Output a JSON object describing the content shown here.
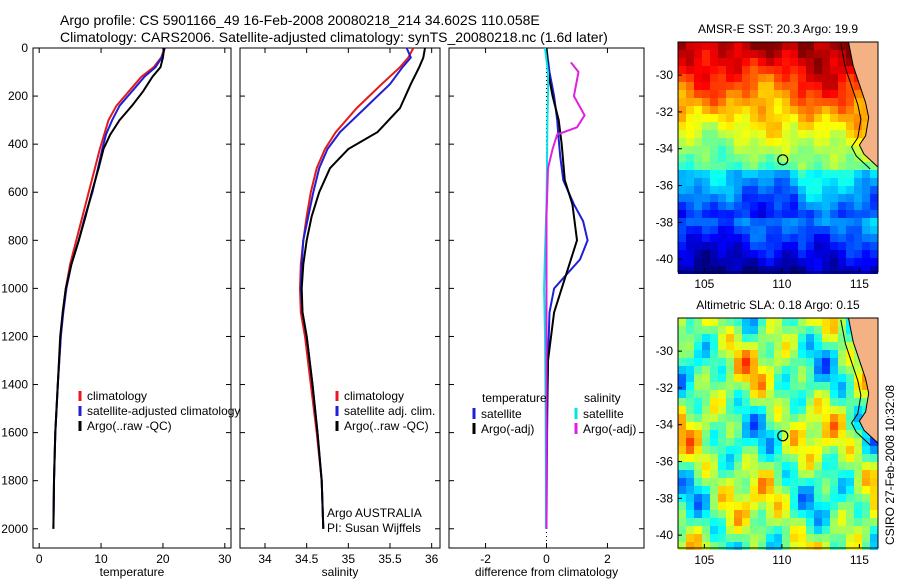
{
  "header": {
    "line1": "Argo profile: CS 5901166_49 16-Feb-2008 20080218_214 34.602S 110.058E",
    "line2": "Climatology: CARS2006. Satellite-adjusted climatology: synTS_20080218.nc (1.6d later)"
  },
  "side_text": "CSIRO 27-Feb-2008 10:32:08",
  "credit": [
    "Argo AUSTRALIA",
    "PI: Susan Wijffels"
  ],
  "colors": {
    "red": "#e41a1c",
    "blue": "#1f1fd6",
    "black": "#000000",
    "cyan": "#00e5e5",
    "magenta": "#e020e0",
    "land": "#f4b183"
  },
  "chart_data": [
    {
      "type": "line",
      "xlabel": "temperature",
      "xlim": [
        -1,
        31
      ],
      "xticks": [
        0,
        10,
        20,
        30
      ],
      "ylim": [
        2080,
        0
      ],
      "yticks": [
        0,
        200,
        400,
        600,
        800,
        1000,
        1200,
        1400,
        1600,
        1800,
        2000
      ],
      "legend": [
        "climatology",
        "satellite-adjusted climatology",
        "Argo(..raw -QC)"
      ],
      "series": [
        {
          "name": "climatology",
          "color": "red",
          "x": [
            20.3,
            19.7,
            18.5,
            16.5,
            14.5,
            12.5,
            11.2,
            10.5,
            9.8,
            9.0,
            8.0,
            7.0,
            6.0,
            5.0,
            4.3,
            3.8,
            3.5,
            3.0,
            2.6,
            2.4,
            2.3
          ],
          "y": [
            0,
            40,
            80,
            120,
            180,
            240,
            300,
            360,
            420,
            500,
            600,
            700,
            800,
            900,
            1000,
            1100,
            1200,
            1400,
            1600,
            1800,
            2000
          ]
        },
        {
          "name": "satellite-adjusted climatology",
          "color": "blue",
          "x": [
            20.3,
            19.8,
            18.8,
            17.0,
            15.0,
            13.0,
            11.8,
            10.8,
            10.2,
            9.5,
            8.6,
            7.4,
            6.4,
            5.2,
            4.4,
            3.9,
            3.5,
            3.0,
            2.6,
            2.4,
            2.3
          ],
          "y": [
            0,
            40,
            80,
            120,
            180,
            240,
            300,
            360,
            420,
            500,
            600,
            700,
            800,
            900,
            1000,
            1100,
            1200,
            1400,
            1600,
            1800,
            2000
          ]
        },
        {
          "name": "Argo(..raw -QC)",
          "color": "black",
          "x": [
            20.2,
            20.0,
            19.6,
            18.3,
            16.8,
            15.0,
            13.0,
            11.5,
            10.4,
            9.6,
            8.5,
            7.5,
            6.4,
            5.2,
            4.3,
            3.8,
            3.4,
            3.0,
            2.6,
            2.4,
            2.3
          ],
          "y": [
            0,
            40,
            80,
            120,
            180,
            240,
            300,
            360,
            420,
            500,
            600,
            700,
            800,
            900,
            1000,
            1100,
            1200,
            1400,
            1600,
            1800,
            2000
          ]
        }
      ]
    },
    {
      "type": "line",
      "xlabel": "salinity",
      "xlim": [
        33.7,
        36.1
      ],
      "xticks": [
        34,
        34.5,
        35,
        35.5,
        36
      ],
      "ylim": [
        2080,
        0
      ],
      "legend": [
        "climatology",
        "satellite adj. clim.",
        "Argo(..raw -QC)"
      ],
      "series": [
        {
          "name": "climatology",
          "color": "red",
          "x": [
            35.78,
            35.72,
            35.62,
            35.4,
            35.1,
            34.85,
            34.72,
            34.62,
            34.55,
            34.5,
            34.46,
            34.43,
            34.42,
            34.43,
            34.48,
            34.55,
            34.62,
            34.68,
            34.7
          ],
          "y": [
            0,
            40,
            80,
            150,
            250,
            350,
            420,
            500,
            600,
            700,
            800,
            900,
            1000,
            1100,
            1200,
            1400,
            1600,
            1800,
            2000
          ]
        },
        {
          "name": "satellite adj. clim.",
          "color": "blue",
          "x": [
            35.7,
            35.75,
            35.65,
            35.5,
            35.2,
            34.9,
            34.75,
            34.65,
            34.58,
            34.52,
            34.46,
            34.44,
            34.43,
            34.45,
            34.5,
            34.57,
            34.63,
            34.68,
            34.7
          ],
          "y": [
            0,
            40,
            80,
            150,
            250,
            350,
            420,
            500,
            600,
            700,
            800,
            900,
            1000,
            1100,
            1200,
            1400,
            1600,
            1800,
            2000
          ]
        },
        {
          "name": "Argo(..raw -QC)",
          "color": "black",
          "x": [
            35.92,
            35.9,
            35.85,
            35.75,
            35.62,
            35.35,
            35.0,
            34.78,
            34.65,
            34.56,
            34.5,
            34.46,
            34.44,
            34.45,
            34.5,
            34.57,
            34.63,
            34.68,
            34.7
          ],
          "y": [
            0,
            40,
            80,
            150,
            250,
            350,
            420,
            500,
            600,
            700,
            800,
            900,
            1000,
            1100,
            1200,
            1400,
            1600,
            1800,
            2000
          ]
        }
      ]
    },
    {
      "type": "line",
      "xlabel": "difference from climatology",
      "xlim": [
        -3.2,
        3.2
      ],
      "xticks": [
        -2,
        0,
        2
      ],
      "ylim": [
        2080,
        0
      ],
      "legend_titles": [
        "temperature",
        "salinity"
      ],
      "legend": [
        "satellite",
        "Argo(-adj)",
        "satellite",
        "Argo(-adj)"
      ],
      "series": [
        {
          "name": "satellite",
          "group": "temperature",
          "color": "blue",
          "x": [
            0.0,
            0.1,
            0.25,
            0.35,
            0.4,
            0.45,
            0.55,
            0.9,
            1.2,
            1.35,
            1.1,
            0.6,
            0.25,
            0.1,
            0.05,
            0.02,
            0.0
          ],
          "y": [
            0,
            100,
            200,
            300,
            380,
            450,
            550,
            650,
            720,
            800,
            880,
            950,
            1000,
            1100,
            1300,
            1600,
            2000
          ]
        },
        {
          "name": "Argo(-adj)",
          "group": "temperature",
          "color": "black",
          "x": [
            0.0,
            0.05,
            0.2,
            0.4,
            0.5,
            0.6,
            0.85,
            1.0,
            0.5,
            0.25,
            0.05,
            0.0,
            0.0
          ],
          "y": [
            0,
            100,
            200,
            300,
            400,
            550,
            650,
            800,
            1000,
            1100,
            1300,
            1600,
            2000
          ]
        },
        {
          "name": "satellite",
          "group": "salinity",
          "color": "cyan",
          "x": [
            -0.05,
            0.05,
            0.05,
            0.03,
            0.02,
            0.0,
            -0.05,
            -0.08,
            -0.05,
            -0.03,
            -0.02,
            -0.02
          ],
          "y": [
            0,
            100,
            200,
            300,
            450,
            650,
            850,
            1000,
            1200,
            1500,
            1800,
            2000
          ]
        },
        {
          "name": "Argo(-adj)",
          "group": "salinity",
          "color": "magenta",
          "x": [
            0.8,
            1.05,
            0.9,
            1.25,
            1.0,
            0.35,
            0.2,
            0.05,
            0.0,
            0.0
          ],
          "y": [
            60,
            100,
            200,
            280,
            330,
            360,
            420,
            500,
            700,
            2000
          ]
        }
      ]
    },
    {
      "type": "heatmap",
      "title": "AMSR-E SST: 20.3  Argo: 19.9",
      "xticks": [
        105,
        110,
        115
      ],
      "yticks": [
        -30,
        -32,
        -34,
        -36,
        -38,
        -40
      ],
      "xlim": [
        103.3,
        116.2
      ],
      "ylim": [
        -40.7,
        -28.2
      ],
      "marker": {
        "lon": 110.058,
        "lat": -34.602
      }
    },
    {
      "type": "heatmap",
      "title": "Altimetric SLA: 0.18  Argo: 0.15",
      "xticks": [
        105,
        110,
        115
      ],
      "yticks": [
        -30,
        -32,
        -34,
        -36,
        -38,
        -40
      ],
      "xlim": [
        103.3,
        116.2
      ],
      "ylim": [
        -40.7,
        -28.2
      ],
      "marker": {
        "lon": 110.058,
        "lat": -34.602
      }
    }
  ]
}
